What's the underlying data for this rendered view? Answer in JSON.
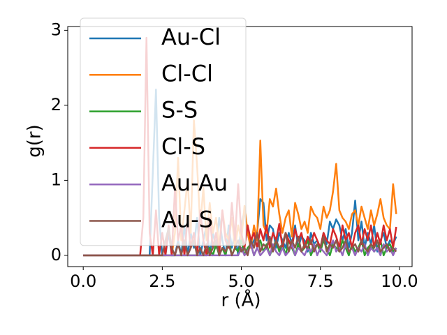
{
  "chart_data": {
    "type": "line",
    "xlabel": "r (Å)",
    "ylabel": "g(r)",
    "xlim": [
      -0.49,
      10.4
    ],
    "ylim": [
      -0.15,
      3.05
    ],
    "xticks": [
      {
        "value": 0,
        "label": "0.0"
      },
      2.5,
      {
        "value": 5,
        "label": "5.0"
      },
      7.5,
      {
        "value": 10,
        "label": "10.0"
      }
    ],
    "yticks": [
      0,
      1,
      2,
      3
    ],
    "legend": "upper left",
    "x": [
      0,
      0.1,
      0.2,
      0.3,
      0.4,
      0.5,
      0.6,
      0.7,
      0.8,
      0.9,
      1,
      1.1,
      1.2,
      1.3,
      1.4,
      1.5,
      1.6,
      1.7,
      1.8,
      1.9,
      2,
      2.1,
      2.2,
      2.3,
      2.4,
      2.5,
      2.6,
      2.7,
      2.8,
      2.9,
      3,
      3.1,
      3.2,
      3.3,
      3.4,
      3.5,
      3.6,
      3.7,
      3.8,
      3.9,
      4,
      4.1,
      4.2,
      4.3,
      4.4,
      4.5,
      4.6,
      4.7,
      4.8,
      4.9,
      5,
      5.1,
      5.2,
      5.3,
      5.4,
      5.5,
      5.6,
      5.7,
      5.8,
      5.9,
      6,
      6.1,
      6.2,
      6.3,
      6.4,
      6.5,
      6.6,
      6.7,
      6.8,
      6.9,
      7,
      7.1,
      7.2,
      7.3,
      7.4,
      7.5,
      7.6,
      7.7,
      7.8,
      7.9,
      8,
      8.1,
      8.2,
      8.3,
      8.4,
      8.5,
      8.6,
      8.7,
      8.8,
      8.9,
      9,
      9.1,
      9.2,
      9.3,
      9.4,
      9.5,
      9.6,
      9.7,
      9.8,
      9.9
    ],
    "series": [
      {
        "name": "Au-Cl",
        "color": "#1f77b4",
        "values": [
          0,
          0,
          0,
          0,
          0,
          0,
          0,
          0,
          0,
          0,
          0,
          0,
          0,
          0,
          0,
          0,
          0,
          0,
          0,
          0,
          0,
          0,
          1.1,
          2.21,
          0.5,
          0,
          0,
          0.3,
          0,
          0,
          0.2,
          0,
          0.4,
          0,
          0.3,
          0.1,
          0.5,
          0,
          0.2,
          0.4,
          0,
          0.3,
          0.1,
          0.5,
          0.2,
          0,
          0.4,
          0.1,
          0.3,
          0,
          0.4,
          0.6,
          0.3,
          0.1,
          0.2,
          0.3,
          0.75,
          0.7,
          0.2,
          0.4,
          0.35,
          0.1,
          0.3,
          0.2,
          0.1,
          0.3,
          0.15,
          0.4,
          0.1,
          0.25,
          0.2,
          0.05,
          0.3,
          0.15,
          0.2,
          0.1,
          0.3,
          0.15,
          0.45,
          0.35,
          0.48,
          0.4,
          0.2,
          0.35,
          0.1,
          0.3,
          0.73,
          0.2,
          0.45,
          0.1,
          0.3,
          0.15,
          0.4,
          0.05,
          0.2,
          0.3,
          0.1,
          0.2,
          0.15,
          0.25
        ]
      },
      {
        "name": "Cl-Cl",
        "color": "#ff7f0e",
        "values": [
          0,
          0,
          0,
          0,
          0,
          0,
          0,
          0,
          0,
          0,
          0,
          0,
          0,
          0,
          0,
          0,
          0,
          0,
          0,
          0,
          0,
          0,
          0,
          0,
          0,
          0,
          0,
          0,
          0,
          0.3,
          1.3,
          0.2,
          0.6,
          1,
          0.3,
          1.8,
          1.2,
          0.4,
          0.9,
          0.2,
          0.7,
          0.3,
          0.5,
          0.1,
          0.6,
          0.3,
          0.2,
          0.5,
          0.1,
          0.4,
          0.2,
          0.66,
          0.3,
          0.1,
          0.4,
          0.2,
          1.53,
          0.4,
          0.3,
          0.75,
          0.65,
          0.89,
          0.55,
          0.3,
          0.5,
          0.6,
          0.25,
          0.7,
          0.55,
          0.35,
          0.45,
          0.3,
          0.65,
          0.55,
          0.5,
          0.35,
          0.65,
          0.5,
          0.6,
          0.85,
          1.22,
          0.6,
          0.5,
          0.45,
          0.35,
          0.55,
          0.6,
          0.4,
          0.65,
          0.5,
          0.35,
          0.6,
          0.4,
          0.55,
          0.75,
          0.5,
          0.4,
          0.35,
          0.95,
          0.55
        ]
      },
      {
        "name": "S-S",
        "color": "#2ca02c",
        "values": [
          0,
          0,
          0,
          0,
          0,
          0,
          0,
          0,
          0,
          0,
          0,
          0,
          0,
          0,
          0,
          0,
          0,
          0,
          0,
          0,
          0,
          0,
          0,
          0,
          0,
          0,
          0,
          0,
          0,
          0,
          0,
          0,
          0,
          0,
          0,
          0,
          0,
          0,
          0,
          0,
          0.1,
          0,
          0.15,
          0,
          0.1,
          0,
          0.2,
          0,
          0.1,
          0.05,
          0.2,
          0,
          0.1,
          0.15,
          0,
          0.1,
          0.2,
          0.05,
          0.15,
          0,
          0.1,
          0.2,
          0.05,
          0.15,
          0,
          0.2,
          0.1,
          0,
          0.15,
          0.05,
          0.1,
          0.2,
          0,
          0.1,
          0.15,
          0.05,
          0.2,
          0.1,
          0,
          0.15,
          0.1,
          0.05,
          0.2,
          0.1,
          0,
          0.15,
          0.05,
          0.1,
          0.2,
          0,
          0.1,
          0.15,
          0.05,
          0.1,
          0.2,
          0,
          0.1,
          0.15,
          0.05,
          0.1
        ]
      },
      {
        "name": "Cl-S",
        "color": "#d62728",
        "values": [
          0,
          0,
          0,
          0,
          0,
          0,
          0,
          0,
          0,
          0,
          0,
          0,
          0,
          0,
          0,
          0,
          0,
          0,
          0,
          0.5,
          2.9,
          0.3,
          0,
          0.6,
          0,
          0.3,
          0,
          0.4,
          0,
          0.9,
          0.2,
          0.4,
          0,
          0.5,
          0.1,
          0.3,
          0,
          0.6,
          0.2,
          0,
          0.5,
          0.1,
          0.3,
          0,
          0.6,
          0.2,
          0.1,
          0.7,
          0.2,
          0.95,
          0.3,
          0.1,
          0.4,
          0.2,
          0.3,
          0.1,
          0.35,
          0.2,
          0.4,
          0.1,
          0.3,
          0.2,
          0.42,
          0.1,
          0.3,
          0.2,
          0.1,
          0.35,
          0.2,
          0.3,
          0.1,
          0.25,
          0.15,
          0.3,
          0.2,
          0.1,
          0.3,
          0.2,
          0.15,
          0.35,
          0.25,
          0.1,
          0.4,
          0.2,
          0.3,
          0.1,
          0.3,
          0.4,
          0.15,
          0.35,
          0.2,
          0.4,
          0.1,
          0.3,
          0.15,
          0.4,
          0.2,
          0.35,
          0.1,
          0.38
        ]
      },
      {
        "name": "Au-Au",
        "color": "#9467bd",
        "values": [
          0,
          0,
          0,
          0,
          0,
          0,
          0,
          0,
          0,
          0,
          0,
          0,
          0,
          0,
          0,
          0,
          0,
          0,
          0,
          0,
          0,
          0,
          0,
          0,
          0,
          0,
          0,
          0,
          0,
          0,
          0,
          0,
          0,
          0,
          0,
          0,
          0,
          0,
          0,
          0,
          0,
          0,
          0,
          0,
          0,
          0,
          0,
          0,
          0,
          0,
          0.1,
          0,
          0.05,
          0.15,
          0,
          0.1,
          0,
          0.05,
          0.1,
          0,
          0.15,
          0.05,
          0,
          0.1,
          0,
          0.05,
          0.15,
          0,
          0.1,
          0.05,
          0,
          0.1,
          0.05,
          0.15,
          0,
          0.1,
          0.05,
          0,
          0.1,
          0.2,
          0.05,
          0.1,
          0,
          0.15,
          0.05,
          0.1,
          0,
          0.1,
          0.05,
          0.15,
          0,
          0.1,
          0.05,
          0.1,
          0,
          0.15,
          0.05,
          0.1,
          0,
          0.1
        ]
      },
      {
        "name": "Au-S",
        "color": "#8c564b",
        "values": [
          0,
          0,
          0,
          0,
          0,
          0,
          0,
          0,
          0,
          0,
          0,
          0,
          0,
          0,
          0,
          0,
          0,
          0,
          0,
          0,
          0,
          0,
          0,
          0,
          0,
          0,
          0.2,
          0.36,
          0.1,
          0,
          0.15,
          0,
          0.2,
          0,
          0.1,
          0.2,
          0,
          0.1,
          0,
          0.15,
          0,
          0.1,
          0.2,
          0,
          0.1,
          0.05,
          0.15,
          0,
          0.1,
          0.2,
          0.05,
          0.1,
          0,
          0.2,
          0.1,
          0.3,
          0.05,
          0.15,
          0.1,
          0.25,
          0.05,
          0.2,
          0.1,
          0.15,
          0.3,
          0.05,
          0.2,
          0.1,
          0.25,
          0.05,
          0.15,
          0.1,
          0.2,
          0.05,
          0.15,
          0.1,
          0.25,
          0.05,
          0.15,
          0.1,
          0.2,
          0.05,
          0.1,
          0.2,
          0.05,
          0.1,
          0.15,
          0.05,
          0.2,
          0.1,
          0.05,
          0.15,
          0.1,
          0.2,
          0.05,
          0.1,
          0.15,
          0.05,
          0.1,
          0.05
        ]
      }
    ]
  }
}
